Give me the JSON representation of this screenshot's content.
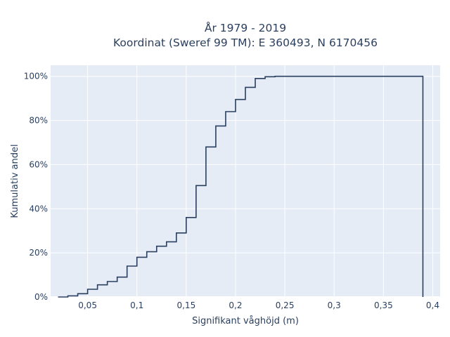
{
  "chart_data": {
    "type": "line",
    "subtype": "ecdf-step",
    "title": [
      "År 1979 - 2019",
      "Koordinat (Sweref 99 TM): E 360493, N 6170456"
    ],
    "xlabel": "Signifikant våghöjd (m)",
    "ylabel": "Kumulativ andel",
    "xlim": [
      0.0125,
      0.4075
    ],
    "ylim": [
      0,
      1.05
    ],
    "x_ticks": [
      0.05,
      0.1,
      0.15,
      0.2,
      0.25,
      0.3,
      0.35,
      0.4
    ],
    "x_tick_labels": [
      "0,05",
      "0,1",
      "0,15",
      "0,2",
      "0,25",
      "0,3",
      "0,35",
      "0,4"
    ],
    "y_ticks": [
      0,
      0.2,
      0.4,
      0.6,
      0.8,
      1.0
    ],
    "y_tick_labels": [
      "0%",
      "20%",
      "40%",
      "60%",
      "80%",
      "100%"
    ],
    "grid": true,
    "legend": "none",
    "x": [
      0.02,
      0.03,
      0.04,
      0.05,
      0.06,
      0.07,
      0.08,
      0.09,
      0.1,
      0.11,
      0.12,
      0.13,
      0.14,
      0.15,
      0.16,
      0.17,
      0.18,
      0.19,
      0.2,
      0.21,
      0.22,
      0.23,
      0.24,
      0.39
    ],
    "y": [
      0.0,
      0.005,
      0.015,
      0.035,
      0.055,
      0.07,
      0.09,
      0.14,
      0.18,
      0.205,
      0.23,
      0.25,
      0.29,
      0.36,
      0.505,
      0.68,
      0.775,
      0.84,
      0.895,
      0.95,
      0.99,
      0.998,
      1.0,
      1.0
    ],
    "colors": {
      "line": "#2a3f5f",
      "plot_bg": "#e5ecf6",
      "grid": "#ffffff",
      "text": "#2a3f5f"
    }
  }
}
